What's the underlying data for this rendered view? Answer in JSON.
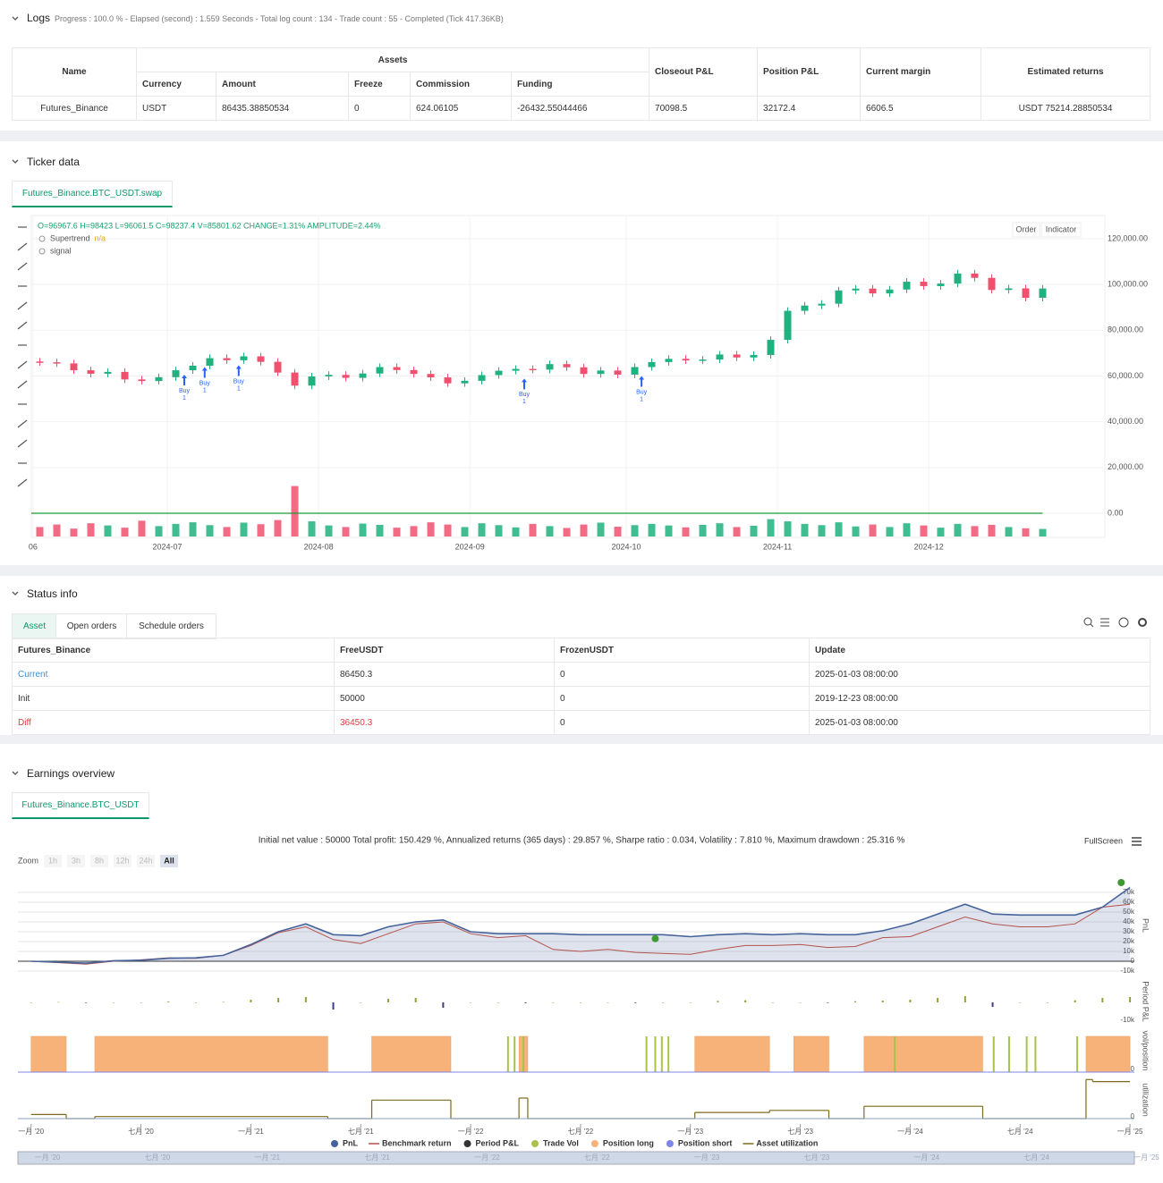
{
  "logs": {
    "title": "Logs",
    "summary": "Progress : 100.0 % - Elapsed (second) : 1.559 Seconds - Total log count : 134 - Trade count : 55 - Completed (Tick 417.36KB)",
    "table": {
      "group": "Assets",
      "headers": [
        "Name",
        "Currency",
        "Amount",
        "Freeze",
        "Commission",
        "Funding",
        "Closeout P&L",
        "Position P&L",
        "Current margin",
        "Estimated returns"
      ],
      "row": [
        "Futures_Binance",
        "USDT",
        "86435.38850534",
        "0",
        "624.06105",
        "-26432.55044466",
        "70098.5",
        "32172.4",
        "6606.5",
        "USDT 75214.28850534"
      ]
    }
  },
  "ticker": {
    "title": "Ticker data",
    "tab": "Futures_Binance.BTC_USDT.swap",
    "ohlc": "O=96967.6 H=98423 L=96061.5 C=98237.4 V=85801.62 CHANGE=1.31% AMPLITUDE=2.44%",
    "indicators": [
      {
        "name": "Supertrend",
        "value": "n/a"
      },
      {
        "name": "signal"
      }
    ],
    "buttons": [
      "Order",
      "Indicator"
    ],
    "chart": {
      "type": "candlestick",
      "xlim": [
        -0.5,
        59.5
      ],
      "ylim": [
        -10000,
        130000
      ],
      "xticks": [
        {
          "value": -0.4,
          "label": "06"
        },
        {
          "value": 7.5,
          "label": "2024-07"
        },
        {
          "value": 16.4,
          "label": "2024-08"
        },
        {
          "value": 25.3,
          "label": "2024-09"
        },
        {
          "value": 34.5,
          "label": "2024-10"
        },
        {
          "value": 43.4,
          "label": "2024-11"
        },
        {
          "value": 52.3,
          "label": "2024-12"
        }
      ],
      "yticks": [
        {
          "value": 0,
          "label": "0.00"
        },
        {
          "value": 20000,
          "label": "20,000.00"
        },
        {
          "value": 40000,
          "label": "40,000.00"
        },
        {
          "value": 60000,
          "label": "60,000.00"
        },
        {
          "value": 80000,
          "label": "80,000.00"
        },
        {
          "value": 100000,
          "label": "100,000.00"
        },
        {
          "value": 120000,
          "label": "120,000.00"
        }
      ],
      "up_color": "#1fb17e",
      "down_color": "#f0506e",
      "closes": [
        66000,
        65500,
        62500,
        61000,
        61800,
        58500,
        57800,
        59500,
        62500,
        64500,
        67800,
        66900,
        68600,
        66200,
        61500,
        55800,
        59800,
        60500,
        59200,
        61100,
        63900,
        62600,
        60900,
        59400,
        56800,
        57900,
        60400,
        62300,
        63100,
        62800,
        65200,
        63800,
        60900,
        62400,
        60600,
        63900,
        66100,
        67500,
        66800,
        67200,
        69400,
        68100,
        69200,
        75800,
        88500,
        90800,
        91600,
        97400,
        98200,
        96100,
        97800,
        101200,
        99300,
        100400,
        104800,
        102900,
        97600,
        98300,
        94200,
        98237.4
      ],
      "volumes": [
        30,
        38,
        25,
        42,
        35,
        28,
        50,
        33,
        40,
        45,
        36,
        30,
        44,
        39,
        52,
        160,
        48,
        35,
        30,
        41,
        37,
        28,
        33,
        45,
        38,
        30,
        42,
        36,
        29,
        40,
        33,
        27,
        38,
        44,
        31,
        36,
        40,
        35,
        29,
        37,
        42,
        30,
        34,
        55,
        48,
        40,
        36,
        45,
        32,
        38,
        30,
        42,
        35,
        28,
        40,
        33,
        37,
        30,
        26,
        24
      ],
      "vlim": [
        0,
        170
      ],
      "signal": {
        "value": 0,
        "color": "#1a9a3a"
      },
      "signals": [
        {
          "x": 8.5,
          "label": "Buy",
          "qty": 1
        },
        {
          "x": 9.7,
          "label": "Buy",
          "qty": 1
        },
        {
          "x": 11.7,
          "label": "Buy",
          "qty": 1
        },
        {
          "x": 28.5,
          "label": "Buy",
          "qty": 1
        },
        {
          "x": 35.4,
          "label": "Buy",
          "qty": 1
        }
      ],
      "signal_color": "#2962ff"
    }
  },
  "status": {
    "title": "Status info",
    "tabs": [
      "Asset",
      "Open orders",
      "Schedule orders"
    ],
    "headers": [
      "Futures_Binance",
      "FreeUSDT",
      "FrozenUSDT",
      "Update"
    ],
    "rows": [
      [
        "Current",
        "86450.3",
        "0",
        "2025-01-03 08:00:00"
      ],
      [
        "Init",
        "50000",
        "0",
        "2019-12-23 08:00:00"
      ],
      [
        "Diff",
        "36450.3",
        "0",
        "2025-01-03 08:00:00"
      ]
    ]
  },
  "earnings": {
    "title": "Earnings overview",
    "tab": "Futures_Binance.BTC_USDT",
    "summary": "Initial net value : 50000 Total profit: 150.429 %, Annualized returns (365 days) : 29.857 %, Sharpe ratio : 0.034, Volatility : 7.810 %, Maximum drawdown : 25.316 %",
    "zoom_label": "Zoom",
    "zoom": [
      "1h",
      "3h",
      "8h",
      "12h",
      "24h",
      "All"
    ],
    "fullscreen": "FullScreen",
    "chart": {
      "type": "line",
      "xlim": [
        2019.94,
        2025.02
      ],
      "xticks": [
        {
          "value": 2020.0,
          "label": "一月 '20"
        },
        {
          "value": 2020.5,
          "label": "七月 '20"
        },
        {
          "value": 2021.0,
          "label": "一月 '21"
        },
        {
          "value": 2021.5,
          "label": "七月 '21"
        },
        {
          "value": 2022.0,
          "label": "一月 '22"
        },
        {
          "value": 2022.5,
          "label": "七月 '22"
        },
        {
          "value": 2023.0,
          "label": "一月 '23"
        },
        {
          "value": 2023.5,
          "label": "七月 '23"
        },
        {
          "value": 2024.0,
          "label": "一月 '24"
        },
        {
          "value": 2024.5,
          "label": "七月 '24"
        },
        {
          "value": 2025.0,
          "label": "一月 '25"
        }
      ],
      "ylabel": "PnL",
      "ylim": [
        -10000,
        80000
      ],
      "yticks": [
        {
          "value": -10000,
          "label": "-10k"
        },
        0,
        {
          "value": 10000,
          "label": "10k"
        },
        {
          "value": 20000,
          "label": "20k"
        },
        {
          "value": 30000,
          "label": "30k"
        },
        {
          "value": 40000,
          "label": "40k"
        },
        {
          "value": 50000,
          "label": "50k"
        },
        {
          "value": 60000,
          "label": "60k"
        },
        {
          "value": 70000,
          "label": "70k"
        }
      ],
      "x": [
        2020,
        2020.125,
        2020.25,
        2020.375,
        2020.5,
        2020.625,
        2020.75,
        2020.875,
        2021,
        2021.125,
        2021.25,
        2021.375,
        2021.5,
        2021.625,
        2021.75,
        2021.875,
        2022,
        2022.125,
        2022.25,
        2022.375,
        2022.5,
        2022.625,
        2022.75,
        2022.875,
        2023,
        2023.125,
        2023.25,
        2023.375,
        2023.5,
        2023.625,
        2023.75,
        2023.875,
        2024,
        2024.125,
        2024.25,
        2024.375,
        2024.5,
        2024.625,
        2024.75,
        2024.875,
        2025
      ],
      "series": [
        {
          "name": "PnL",
          "color": "#46639b",
          "values": [
            0,
            -1000,
            -2000,
            500,
            1000,
            3000,
            3500,
            6000,
            17000,
            30000,
            38000,
            27000,
            26000,
            35000,
            40000,
            42000,
            30000,
            28000,
            28000,
            28000,
            27000,
            27000,
            27000,
            27000,
            25000,
            27000,
            28000,
            27000,
            28000,
            27000,
            27000,
            31000,
            38000,
            48000,
            58000,
            48000,
            47000,
            47000,
            47000,
            55000,
            75000
          ]
        },
        {
          "name": "Benchmark return",
          "color": "#b5514c",
          "values": [
            0,
            -1500,
            -3000,
            0,
            1500,
            3500,
            3000,
            6000,
            16000,
            29000,
            35000,
            22000,
            18000,
            28000,
            38000,
            40000,
            28000,
            24000,
            26000,
            12000,
            10000,
            12000,
            9000,
            8000,
            7000,
            12000,
            16000,
            16000,
            17000,
            14000,
            15000,
            24000,
            25000,
            35000,
            45000,
            38000,
            35000,
            35000,
            38000,
            55000,
            58000
          ]
        }
      ],
      "markers": {
        "color": "#3c9a2e",
        "x": [
          2022.84,
          2024.96
        ],
        "values": [
          23000,
          80000
        ]
      },
      "period_pnl": {
        "name": "Period P&L",
        "ylabel": "Period P&L",
        "color": "#333333",
        "up_color": "#8ea33a",
        "down_color": "#3d3d8a",
        "ylim": [
          -12000,
          12000
        ],
        "yticks": [
          {
            "value": -10000,
            "label": "-10k"
          }
        ],
        "values": [
          0,
          200,
          -300,
          0,
          0,
          500,
          0,
          300,
          1500,
          2500,
          3000,
          -4000,
          0,
          2000,
          2500,
          -3000,
          0,
          0,
          -500,
          0,
          0,
          0,
          -400,
          0,
          0,
          800,
          1200,
          0,
          0,
          -300,
          600,
          1000,
          1500,
          2500,
          3500,
          -2500,
          0,
          0,
          1200,
          2500,
          3000
        ]
      },
      "trade_vol": {
        "name": "Trade Vol",
        "color": "#a8c24a",
        "x": [
          2022.17,
          2022.2,
          2022.24,
          2022.8,
          2022.84,
          2022.87,
          2022.9,
          2023.93,
          2024.38,
          2024.45,
          2024.53,
          2024.57,
          2024.76
        ]
      },
      "position_long": {
        "name": "Position long",
        "color": "#f7b27a",
        "ylabel": "vol/position",
        "yticks": [
          0
        ],
        "ylim": [
          0,
          1
        ],
        "intervals": [
          [
            2020.0,
            2020.16
          ],
          [
            2020.29,
            2021.35
          ],
          [
            2021.55,
            2021.91
          ],
          [
            2022.22,
            2022.26
          ],
          [
            2023.02,
            2023.36
          ],
          [
            2023.47,
            2023.63
          ],
          [
            2023.79,
            2024.33
          ],
          [
            2024.8,
            2025.0
          ]
        ]
      },
      "position_short": {
        "name": "Position short",
        "color": "#8085e9"
      },
      "utilization": {
        "name": "Asset utilization",
        "color": "#7f6a1a",
        "ylabel": "utilization",
        "yticks": [
          0
        ],
        "ylim": [
          0,
          1
        ],
        "x": [
          2020.0,
          2020.16,
          2020.29,
          2021.35,
          2021.55,
          2021.91,
          2022.22,
          2022.26,
          2023.02,
          2023.36,
          2023.47,
          2023.63,
          2023.79,
          2024.33,
          2024.8,
          2024.83,
          2025.0
        ],
        "values": [
          0.1,
          0,
          0.05,
          0,
          0.45,
          0,
          0.5,
          0,
          0.15,
          0.2,
          0.2,
          0,
          0.3,
          0,
          0.95,
          0.9,
          0.9
        ]
      }
    }
  }
}
